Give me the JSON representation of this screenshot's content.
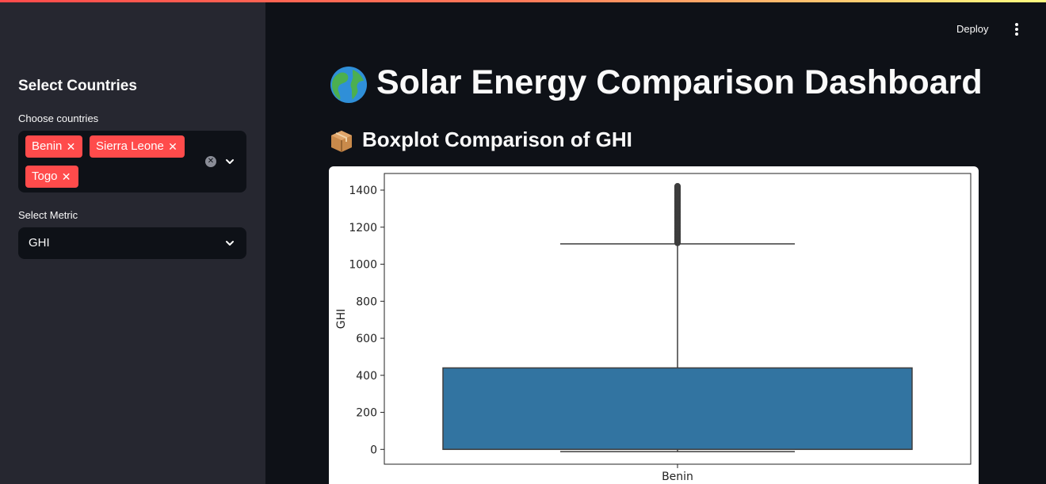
{
  "sidebar": {
    "heading": "Select Countries",
    "countries_label": "Choose countries",
    "selected_countries": [
      "Benin",
      "Sierra Leone",
      "Togo"
    ],
    "metric_label": "Select Metric",
    "metric_value": "GHI",
    "tag_color": "#ff4b4b"
  },
  "toolbar": {
    "deploy_label": "Deploy",
    "menu_icon": "kebab-menu-icon"
  },
  "main": {
    "title": "Solar Energy Comparison Dashboard",
    "title_icon": "globe-icon",
    "subtitle": "Boxplot Comparison of GHI",
    "subtitle_icon": "package-icon"
  },
  "chart_data": {
    "type": "box",
    "categories": [
      "Benin"
    ],
    "ylabel": "GHI",
    "xlabel": "",
    "ylim": [
      -80,
      1490
    ],
    "yticks": [
      0,
      200,
      400,
      600,
      800,
      1000,
      1200,
      1400
    ],
    "boxes": [
      {
        "category": "Benin",
        "whisker_low": -12,
        "q1": 0,
        "median": 0,
        "q3": 440,
        "whisker_high": 1110,
        "outlier_max": 1424
      }
    ],
    "box_color": "#3274a1"
  }
}
